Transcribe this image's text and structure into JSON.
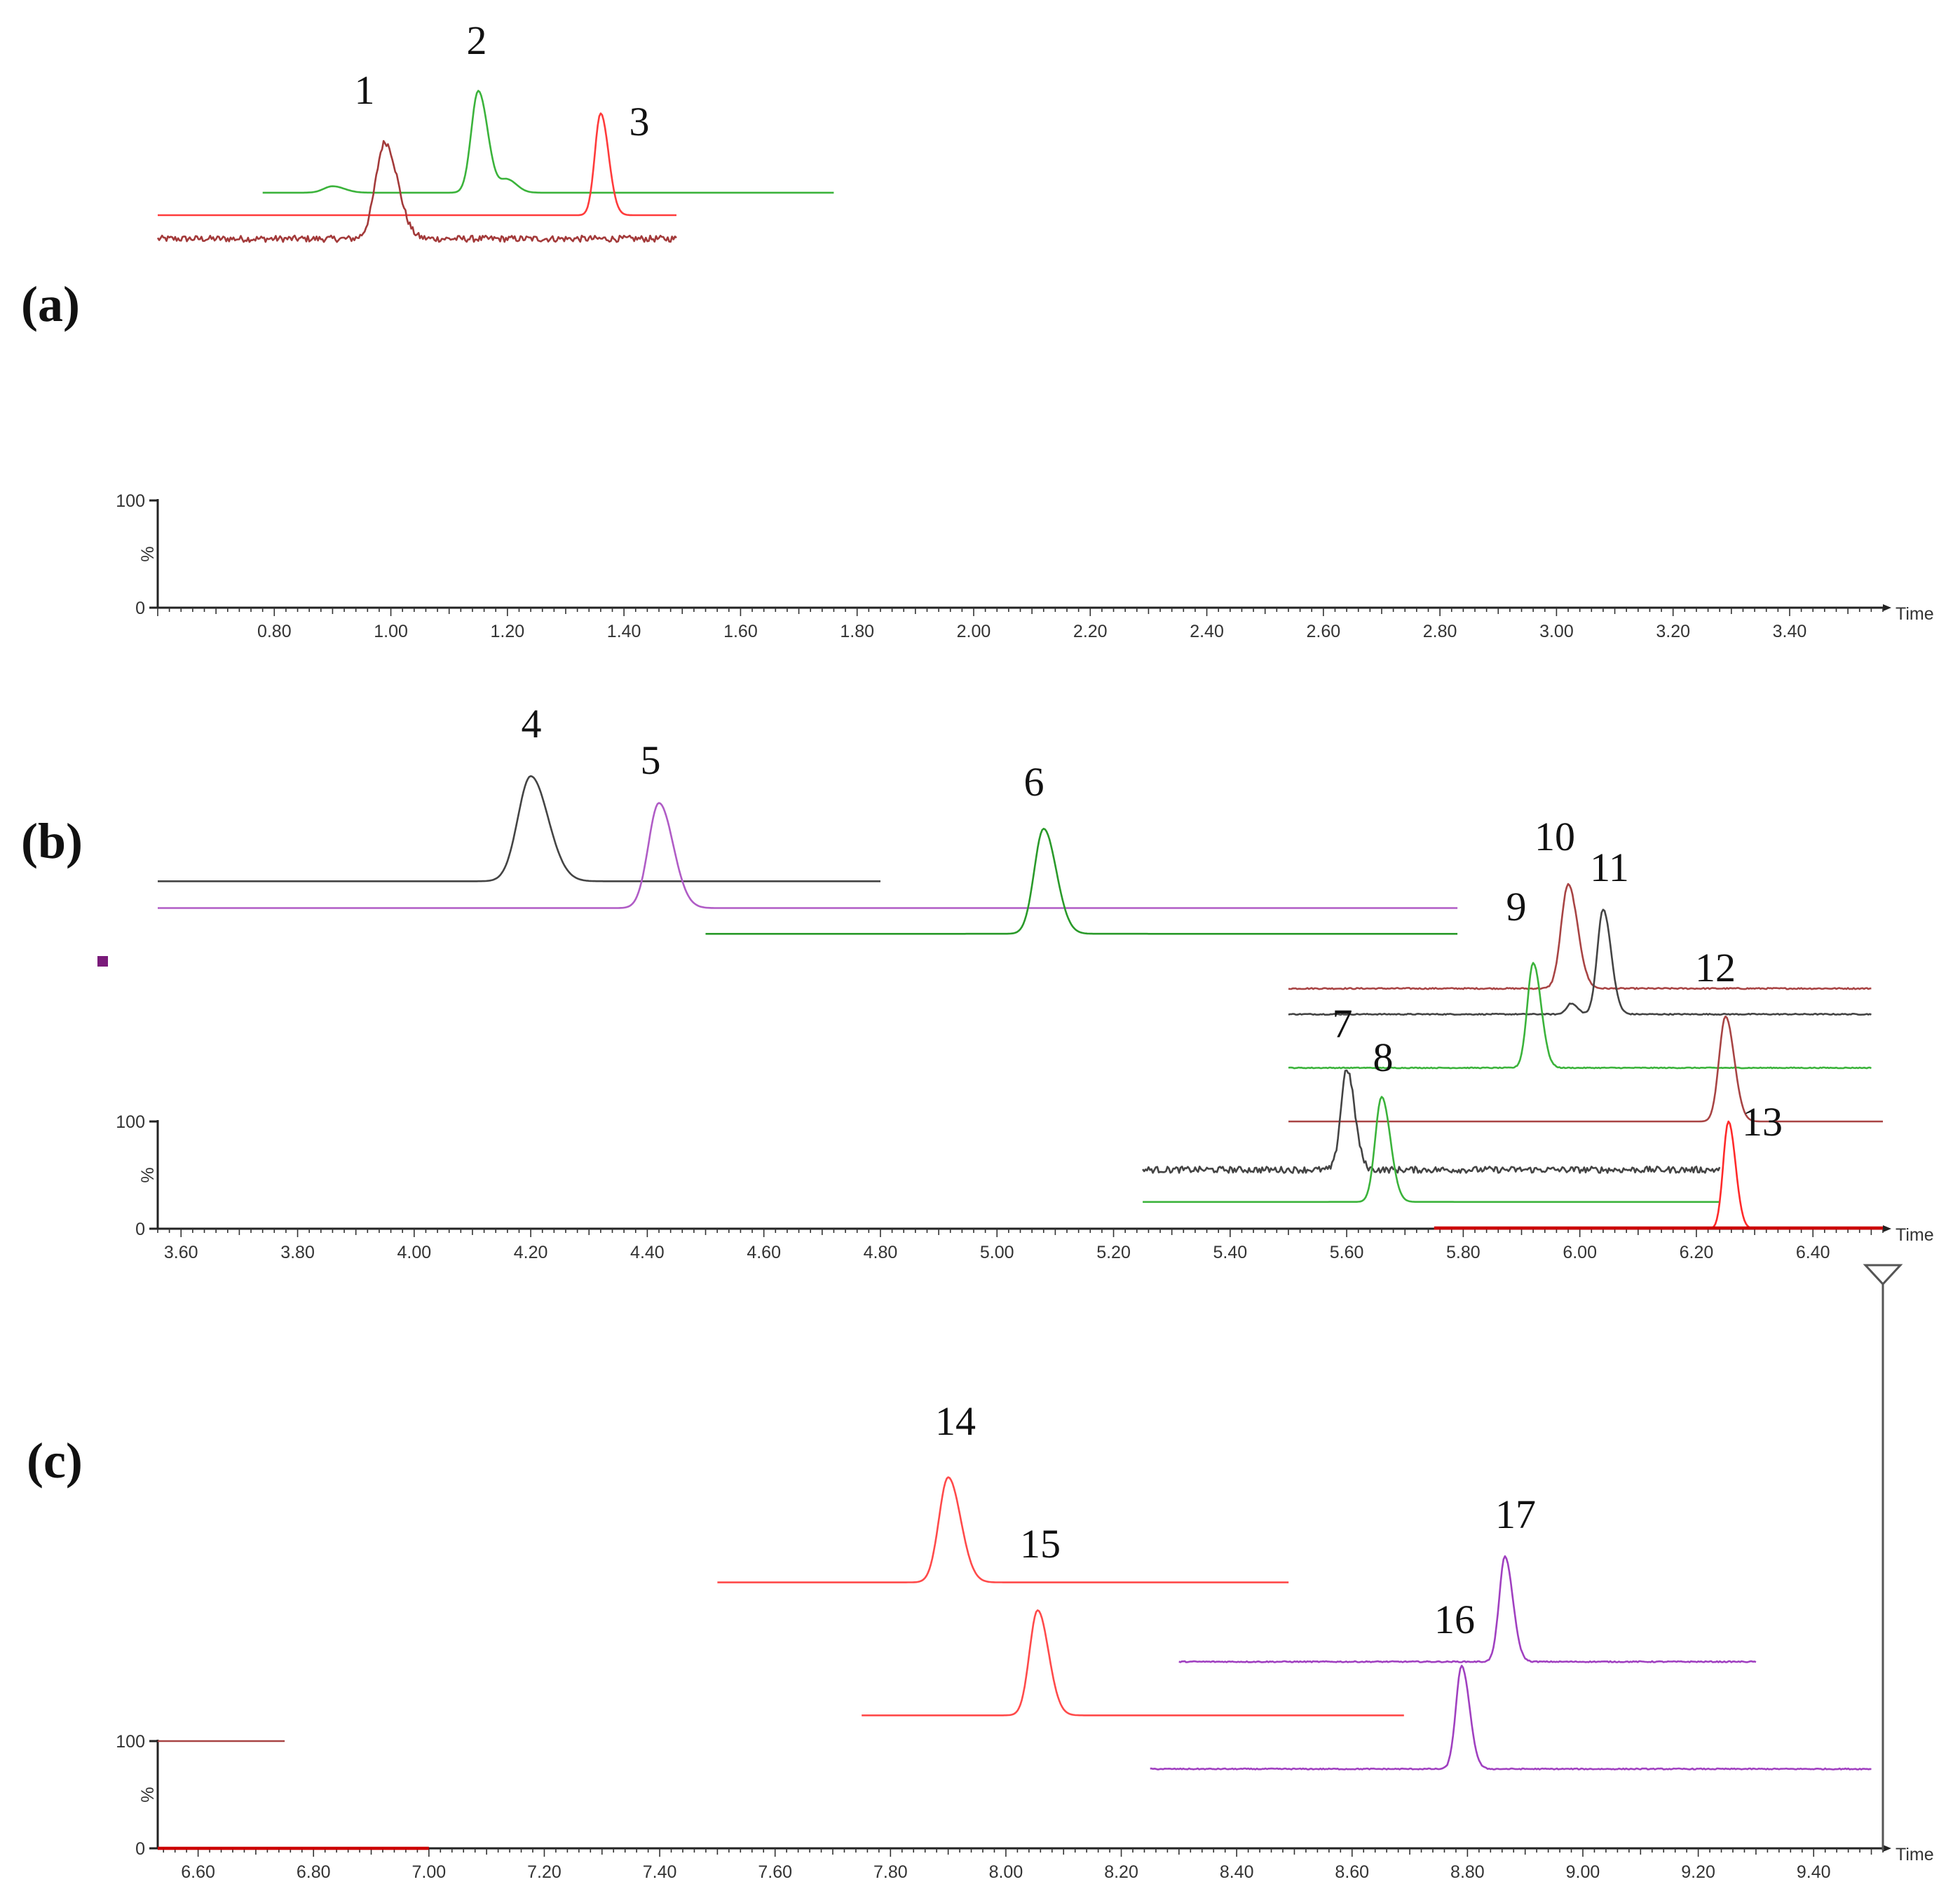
{
  "chart_data": [
    {
      "id": "a",
      "type": "line",
      "label": "(a)",
      "xlabel": "Time",
      "ylabel": "%",
      "y_ticks": [
        "100",
        "0"
      ],
      "xlim": [
        0.6,
        3.56
      ],
      "x_ticks": [
        "0.80",
        "1.00",
        "1.20",
        "1.40",
        "1.60",
        "1.80",
        "2.00",
        "2.20",
        "2.40",
        "2.60",
        "2.80",
        "3.00",
        "3.20",
        "3.40"
      ],
      "peaks": [
        {
          "label": "1",
          "rt": 0.99,
          "color": "#a33a3a"
        },
        {
          "label": "2",
          "rt": 1.15,
          "color": "#3bb33b"
        },
        {
          "label": "3",
          "rt": 1.36,
          "color": "#ff3b3b"
        }
      ],
      "traces": [
        {
          "color": "#3bb33b",
          "x_start": 0.78,
          "x_end": 1.76,
          "baseline_pct": 387,
          "peaks": [
            {
              "rt": 1.15,
              "height": 95,
              "width": 0.012
            },
            {
              "rt": 0.9,
              "height": 6,
              "width": 0.015
            },
            {
              "rt": 1.2,
              "height": 12,
              "width": 0.012
            }
          ],
          "noise": 0
        },
        {
          "color": "#ff3b3b",
          "x_start": 0.6,
          "x_end": 1.49,
          "baseline_pct": 366,
          "peaks": [
            {
              "rt": 1.36,
              "height": 95,
              "width": 0.01
            }
          ],
          "noise": 0
        },
        {
          "color": "#a33a3a",
          "x_start": 0.6,
          "x_end": 1.49,
          "baseline_pct": 344,
          "peaks": [
            {
              "rt": 0.99,
              "height": 90,
              "width": 0.016
            }
          ],
          "noise": 3,
          "step": 8
        }
      ]
    },
    {
      "id": "b",
      "type": "line",
      "label": "(b)",
      "xlabel": "Time",
      "ylabel": "%",
      "y_ticks": [
        "100",
        "0"
      ],
      "xlim": [
        3.56,
        6.52
      ],
      "x_ticks": [
        "3.60",
        "3.80",
        "4.00",
        "4.20",
        "4.40",
        "4.60",
        "4.80",
        "5.00",
        "5.20",
        "5.40",
        "5.60",
        "5.80",
        "6.00",
        "6.20",
        "6.40"
      ],
      "peaks": [
        {
          "label": "4",
          "rt": 4.2
        },
        {
          "label": "5",
          "rt": 4.42
        },
        {
          "label": "6",
          "rt": 5.08
        },
        {
          "label": "7",
          "rt": 5.6
        },
        {
          "label": "8",
          "rt": 5.66
        },
        {
          "label": "9",
          "rt": 5.92
        },
        {
          "label": "10",
          "rt": 5.98
        },
        {
          "label": "11",
          "rt": 6.04
        },
        {
          "label": "12",
          "rt": 6.25
        },
        {
          "label": "13",
          "rt": 6.26
        }
      ],
      "traces": [
        {
          "color": "#444444",
          "x_start": 3.56,
          "x_end": 4.8,
          "baseline_pct": 324,
          "peaks": [
            {
              "rt": 4.2,
              "height": 98,
              "width": 0.022
            }
          ],
          "noise": 0
        },
        {
          "color": "#b05cc6",
          "x_start": 3.56,
          "x_end": 5.79,
          "baseline_pct": 299,
          "peaks": [
            {
              "rt": 4.42,
              "height": 98,
              "width": 0.018
            }
          ],
          "noise": 0
        },
        {
          "color": "#2a9a2a",
          "x_start": 4.5,
          "x_end": 5.79,
          "baseline_pct": 275,
          "peaks": [
            {
              "rt": 5.08,
              "height": 98,
              "width": 0.016
            }
          ],
          "noise": 0
        },
        {
          "color": "#a84444",
          "x_start": 5.5,
          "x_end": 6.5,
          "baseline_pct": 224,
          "peaks": [
            {
              "rt": 5.98,
              "height": 97,
              "width": 0.012
            }
          ],
          "noise": 0.6
        },
        {
          "color": "#444444",
          "x_start": 5.5,
          "x_end": 6.5,
          "baseline_pct": 200,
          "peaks": [
            {
              "rt": 6.04,
              "height": 98,
              "width": 0.01
            },
            {
              "rt": 5.985,
              "height": 10,
              "width": 0.008
            }
          ],
          "noise": 0.5
        },
        {
          "color": "#3bb33b",
          "x_start": 5.5,
          "x_end": 6.5,
          "baseline_pct": 150,
          "peaks": [
            {
              "rt": 5.92,
              "height": 98,
              "width": 0.01
            }
          ],
          "noise": 0.4
        },
        {
          "color": "#a84444",
          "x_start": 5.5,
          "x_end": 6.52,
          "baseline_pct": 100,
          "peaks": [
            {
              "rt": 6.25,
              "height": 98,
              "width": 0.011
            }
          ],
          "noise": 0
        },
        {
          "color": "#444444",
          "x_start": 5.25,
          "x_end": 6.24,
          "baseline_pct": 55,
          "peaks": [
            {
              "rt": 5.6,
              "height": 94,
              "width": 0.01
            }
          ],
          "noise": 3,
          "step": 5
        },
        {
          "color": "#3bb33b",
          "x_start": 5.25,
          "x_end": 6.24,
          "baseline_pct": 25,
          "peaks": [
            {
              "rt": 5.66,
              "height": 98,
              "width": 0.011
            }
          ],
          "noise": 0
        },
        {
          "color": "#ff2a2a",
          "x_start": 5.75,
          "x_end": 6.52,
          "baseline_pct": 0,
          "peaks": [
            {
              "rt": 6.255,
              "height": 100,
              "width": 0.009
            }
          ],
          "noise": 0,
          "thick_baseline_color": "#cc0000"
        }
      ]
    },
    {
      "id": "c",
      "type": "line",
      "label": "(c)",
      "xlabel": "Time",
      "ylabel": "%",
      "y_ticks": [
        "100",
        "0"
      ],
      "xlim": [
        6.53,
        9.52
      ],
      "x_ticks": [
        "6.60",
        "6.80",
        "7.00",
        "7.20",
        "7.40",
        "7.60",
        "7.80",
        "8.00",
        "8.20",
        "8.40",
        "8.60",
        "8.80",
        "9.00",
        "9.20",
        "9.40"
      ],
      "peaks": [
        {
          "label": "14",
          "rt": 7.9
        },
        {
          "label": "15",
          "rt": 8.05
        },
        {
          "label": "16",
          "rt": 8.79
        },
        {
          "label": "17",
          "rt": 8.86
        }
      ],
      "traces": [
        {
          "color": "#ff4a4a",
          "x_start": 7.5,
          "x_end": 8.49,
          "baseline_pct": 248,
          "peaks": [
            {
              "rt": 7.9,
              "height": 98,
              "width": 0.016
            }
          ],
          "noise": 0
        },
        {
          "color": "#ff4a4a",
          "x_start": 7.75,
          "x_end": 8.69,
          "baseline_pct": 124,
          "peaks": [
            {
              "rt": 8.055,
              "height": 98,
              "width": 0.014
            }
          ],
          "noise": 0
        },
        {
          "color": "#a040c0",
          "x_start": 8.3,
          "x_end": 9.3,
          "baseline_pct": 174,
          "peaks": [
            {
              "rt": 8.865,
              "height": 98,
              "width": 0.01
            }
          ],
          "noise": 0.5
        },
        {
          "color": "#a040c0",
          "x_start": 8.25,
          "x_end": 9.5,
          "baseline_pct": 74,
          "peaks": [
            {
              "rt": 8.79,
              "height": 96,
              "width": 0.01
            }
          ],
          "noise": 0.5
        },
        {
          "color": "#a84444",
          "x_start": 6.53,
          "x_end": 6.75,
          "baseline_pct": 100,
          "peaks": [],
          "noise": 0
        },
        {
          "color": "#cc0000",
          "x_start": 6.53,
          "x_end": 7.0,
          "baseline_pct": 0,
          "peaks": [],
          "noise": 0,
          "thick": true
        }
      ]
    }
  ]
}
